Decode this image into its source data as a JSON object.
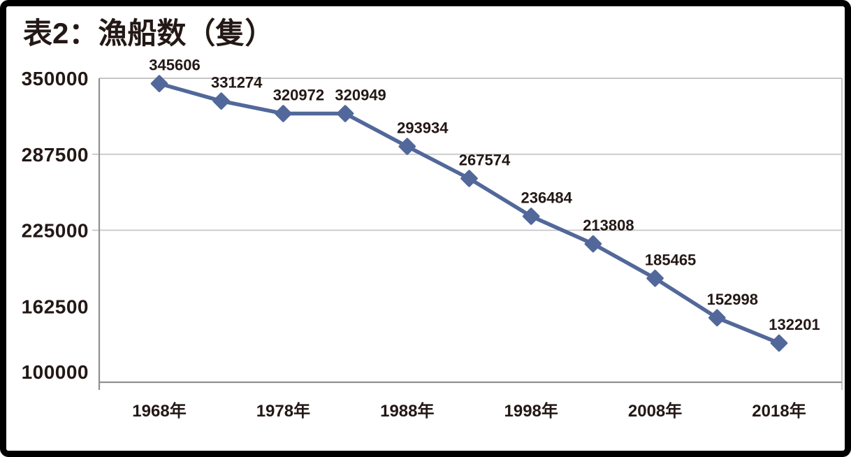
{
  "title": "表2：漁船数（隻）",
  "chart_data": {
    "type": "line",
    "title": "表2：漁船数（隻）",
    "series": [
      {
        "name": "漁船数",
        "values": [
          345606,
          331274,
          320972,
          320949,
          293934,
          267574,
          236484,
          213808,
          185465,
          152998,
          132201
        ],
        "marker": "diamond",
        "color": "#52689a"
      }
    ],
    "data_labels": "visible",
    "x_tick_labels": [
      "1968年",
      "1978年",
      "1988年",
      "1998年",
      "2008年",
      "2018年"
    ],
    "x_tick_point_indices": [
      0,
      2,
      4,
      6,
      8,
      10
    ],
    "y_tick_labels": [
      "350000",
      "287500",
      "225000",
      "162500",
      "100000"
    ],
    "y_tick_values": [
      350000,
      287500,
      225000,
      162500,
      100000
    ],
    "ylim": [
      100000,
      350000
    ],
    "gridline_values": [
      287500,
      225000
    ],
    "grid": "horizontal-only",
    "legend": "none",
    "colors": {
      "line": "#52689a",
      "text": "#231815",
      "grid": "#c6c6c6",
      "axis": "#909090",
      "frame": "#000000"
    }
  }
}
